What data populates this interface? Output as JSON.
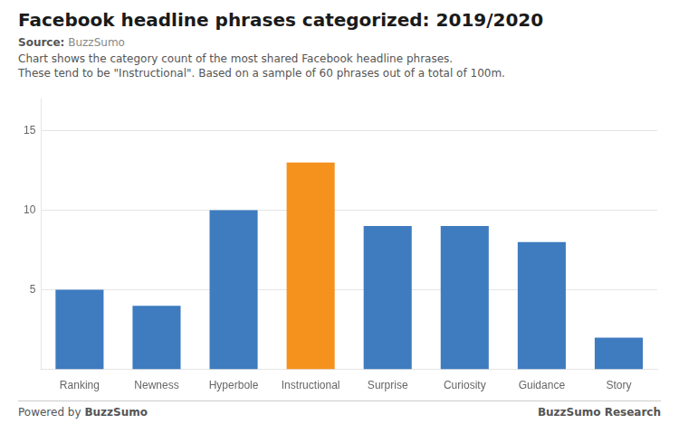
{
  "chart_data": {
    "type": "bar",
    "title": "Facebook headline phrases categorized: 2019/2020",
    "source_label": "Source:",
    "source_value": "BuzzSumo",
    "subtitle": [
      "Chart shows the category count of the most shared Facebook headline phrases.",
      "These tend to be \"Instructional\". Based on a sample of 60 phrases out of a total of 100m."
    ],
    "categories": [
      "Ranking",
      "Newness",
      "Hyperbole",
      "Instructional",
      "Surprise",
      "Curiosity",
      "Guidance",
      "Story"
    ],
    "values": [
      5,
      4,
      10,
      13,
      9,
      9,
      8,
      2
    ],
    "colors": [
      "#3e7bbf",
      "#3e7bbf",
      "#3e7bbf",
      "#f5921e",
      "#3e7bbf",
      "#3e7bbf",
      "#3e7bbf",
      "#3e7bbf"
    ],
    "ylim": [
      0,
      17
    ],
    "yticks": [
      5,
      10,
      15
    ],
    "grid": true,
    "footer_left_prefix": "Powered by",
    "footer_left_bold": "BuzzSumo",
    "footer_right": "BuzzSumo Research"
  }
}
